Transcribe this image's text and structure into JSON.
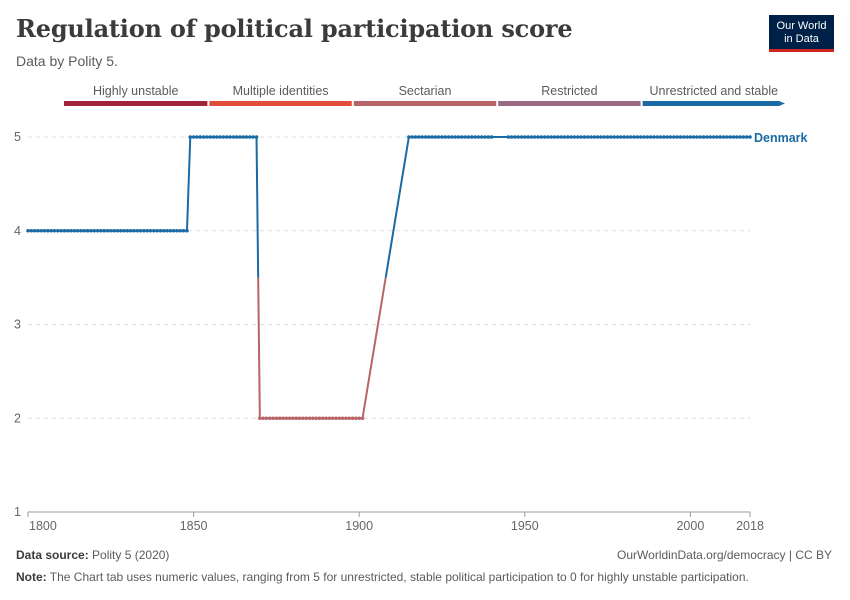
{
  "header": {
    "title": "Regulation of political participation score",
    "subtitle": "Data by Polity 5.",
    "logo_line1": "Our World",
    "logo_line2": "in Data"
  },
  "footer": {
    "source_label": "Data source:",
    "source_value": "Polity 5 (2020)",
    "link": "OurWorldinData.org/democracy | CC BY",
    "note_label": "Note:",
    "note_value": "The Chart tab uses numeric values, ranging from 5 for unrestricted, stable political participation to 0 for highly unstable participation."
  },
  "colors": {
    "series_line": "#1a6aa5",
    "grid": "#dddddd",
    "restricted_segment": "#b86468"
  },
  "chart_data": {
    "type": "line",
    "title": "Regulation of political participation score",
    "subtitle": "Data by Polity 5.",
    "xlabel": "",
    "ylabel": "",
    "xlim": [
      1800,
      2018
    ],
    "ylim": [
      1,
      5
    ],
    "x_ticks": [
      1800,
      1850,
      1900,
      1950,
      2000,
      2018
    ],
    "y_ticks": [
      1,
      2,
      3,
      4,
      5
    ],
    "grid": true,
    "legend": {
      "placement": "top",
      "entries": [
        {
          "label": "Highly unstable",
          "color": "#a2243a"
        },
        {
          "label": "Multiple identities",
          "color": "#e04e3b"
        },
        {
          "label": "Sectarian",
          "color": "#b86468"
        },
        {
          "label": "Restricted",
          "color": "#9a6b82"
        },
        {
          "label": "Unrestricted and stable",
          "color": "#1a6aa5"
        }
      ]
    },
    "series": [
      {
        "name": "Denmark",
        "segments": [
          {
            "from": 1800,
            "to": 1848,
            "value": 4
          },
          {
            "from": 1849,
            "to": 1869,
            "value": 5
          },
          {
            "from": 1870,
            "to": 1901,
            "value": 2
          },
          {
            "from": 1915,
            "to": 1940,
            "value": 5
          },
          {
            "from": 1945,
            "to": 2018,
            "value": 5
          }
        ]
      }
    ]
  }
}
